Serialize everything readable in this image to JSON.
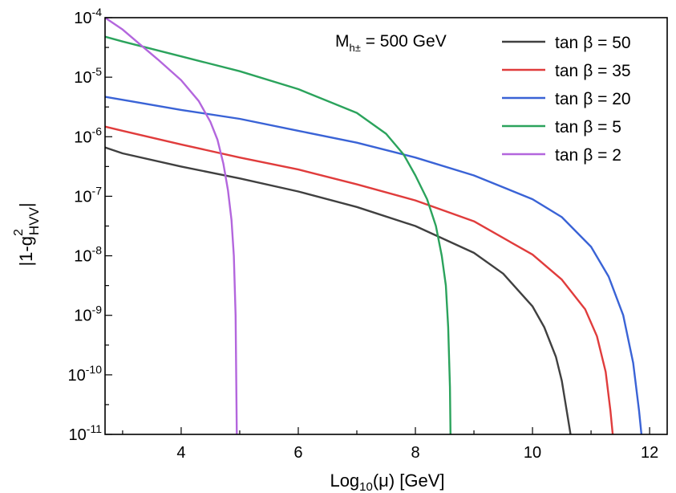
{
  "chart_data": {
    "type": "line",
    "xlabel": {
      "main": "Log",
      "sub": "10",
      "rest": "(μ) [GeV]"
    },
    "ylabel": {
      "pre": "|1-g",
      "sup": "2",
      "sub": "HVV",
      "post": "|"
    },
    "x_ticks": [
      4,
      6,
      8,
      10,
      12
    ],
    "y_ticks": [
      {
        "value": -4,
        "base": "10",
        "exp": "-4"
      },
      {
        "value": -5,
        "base": "10",
        "exp": "-5"
      },
      {
        "value": -6,
        "base": "10",
        "exp": "-6"
      },
      {
        "value": -7,
        "base": "10",
        "exp": "-7"
      },
      {
        "value": -8,
        "base": "10",
        "exp": "-8"
      },
      {
        "value": -9,
        "base": "10",
        "exp": "-9"
      },
      {
        "value": -10,
        "base": "10",
        "exp": "-10"
      },
      {
        "value": -11,
        "base": "10",
        "exp": "-11"
      }
    ],
    "xlim": [
      2.7,
      12.3
    ],
    "ylim_log10": [
      -11,
      -4
    ],
    "y_scale": "log",
    "grid": false,
    "legend_placement": "top-right",
    "annotation": {
      "main": "M",
      "sub": "h±",
      "rest": " = 500 GeV"
    },
    "series": [
      {
        "name": "tan β = 50",
        "label_pre": "tan",
        "label_post": "β = 50",
        "color": "#404040",
        "x": [
          2.7,
          3,
          4,
          5,
          6,
          7,
          8,
          9,
          9.5,
          10,
          10.2,
          10.4,
          10.5,
          10.6,
          10.65
        ],
        "log10_y": [
          -6.18,
          -6.28,
          -6.5,
          -6.7,
          -6.92,
          -7.18,
          -7.5,
          -7.95,
          -8.3,
          -8.85,
          -9.2,
          -9.7,
          -10.1,
          -10.7,
          -11
        ]
      },
      {
        "name": "tan β = 35",
        "label_pre": "tan",
        "label_post": "β = 35",
        "color": "#e03c3c",
        "x": [
          2.7,
          3,
          4,
          5,
          6,
          7,
          8,
          9,
          10,
          10.5,
          10.9,
          11.1,
          11.25,
          11.33,
          11.37
        ],
        "log10_y": [
          -5.83,
          -5.9,
          -6.13,
          -6.35,
          -6.55,
          -6.8,
          -7.07,
          -7.42,
          -7.98,
          -8.4,
          -8.9,
          -9.35,
          -9.95,
          -10.6,
          -11
        ]
      },
      {
        "name": "tan β = 20",
        "label_pre": "tan",
        "label_post": "β = 20",
        "color": "#3a63d6",
        "x": [
          2.7,
          3,
          4,
          5,
          6,
          7,
          8,
          9,
          10,
          10.5,
          11,
          11.3,
          11.55,
          11.72,
          11.82,
          11.86
        ],
        "log10_y": [
          -5.33,
          -5.38,
          -5.55,
          -5.7,
          -5.9,
          -6.1,
          -6.35,
          -6.65,
          -7.05,
          -7.35,
          -7.85,
          -8.35,
          -9.0,
          -9.8,
          -10.6,
          -11
        ]
      },
      {
        "name": "tan β = 5",
        "label_pre": "tan",
        "label_post": "β = 5",
        "color": "#2ba35c",
        "x": [
          2.7,
          3,
          4,
          5,
          6,
          7,
          7.5,
          7.8,
          8.0,
          8.2,
          8.35,
          8.45,
          8.52,
          8.56,
          8.59,
          8.6
        ],
        "log10_y": [
          -4.32,
          -4.4,
          -4.65,
          -4.9,
          -5.2,
          -5.6,
          -5.95,
          -6.3,
          -6.65,
          -7.05,
          -7.5,
          -8.0,
          -8.5,
          -9.2,
          -10.2,
          -11
        ]
      },
      {
        "name": "tan β = 2",
        "label_pre": "tan",
        "label_post": "β = 2",
        "color": "#b366dd",
        "x": [
          2.7,
          3,
          3.3,
          3.6,
          4,
          4.3,
          4.5,
          4.62,
          4.72,
          4.8,
          4.86,
          4.9,
          4.93,
          4.95
        ],
        "log10_y": [
          -4.0,
          -4.2,
          -4.45,
          -4.7,
          -5.05,
          -5.4,
          -5.75,
          -6.05,
          -6.45,
          -6.9,
          -7.4,
          -8.0,
          -9.0,
          -11
        ]
      }
    ]
  }
}
